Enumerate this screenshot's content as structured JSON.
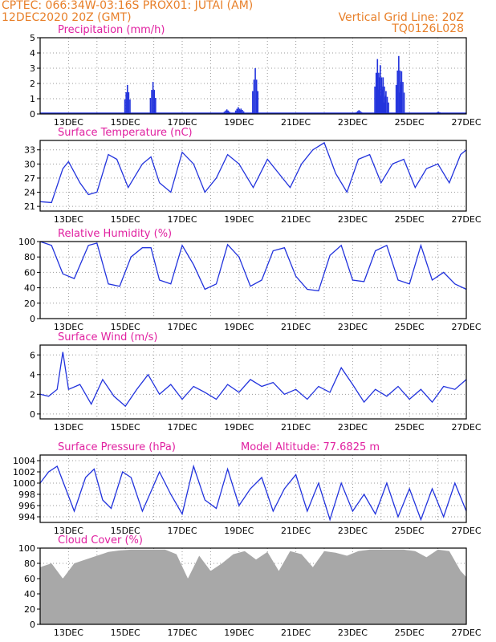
{
  "header": {
    "line1_left": "CPTEC:   066:34W-03:16S  PROX01: JUTAI (AM)",
    "line2_left": "12DEC2020 20Z (GMT)",
    "line2_right": "Vertical Grid Line: 20Z",
    "line3_right": "TQ0126L028",
    "color": "#e8802a"
  },
  "colors": {
    "title": "#e020a0",
    "series": "#2233dd",
    "cloud": "#a8a8a8",
    "grid": "#9a9a9a"
  },
  "x_axis": {
    "labels": [
      "13DEC",
      "15DEC",
      "17DEC",
      "19DEC",
      "21DEC",
      "23DEC",
      "25DEC",
      "27DEC"
    ],
    "start": "12DEC2020 20Z",
    "end": "27DEC2020 20Z",
    "vertical_grid": "20Z"
  },
  "chart_data": [
    {
      "type": "bar",
      "title": "Precipitation (mm/h)",
      "ylim": [
        0,
        5
      ],
      "yticks": [
        0,
        1,
        2,
        3,
        4,
        5
      ],
      "events": [
        [
          3.05,
          1.9
        ],
        [
          3.95,
          2.1
        ],
        [
          6.55,
          0.3
        ],
        [
          6.95,
          0.45
        ],
        [
          7.05,
          0.35
        ],
        [
          7.55,
          3.0
        ],
        [
          11.2,
          0.25
        ],
        [
          11.85,
          3.6
        ],
        [
          11.95,
          3.2
        ],
        [
          12.05,
          2.4
        ],
        [
          12.15,
          1.5
        ],
        [
          12.6,
          3.8
        ],
        [
          12.7,
          2.8
        ],
        [
          14.0,
          0.15
        ]
      ]
    },
    {
      "type": "line",
      "title": "Surface Temperature (nC)",
      "ylim": [
        20,
        35
      ],
      "yticks": [
        21,
        24,
        27,
        30,
        33
      ],
      "values": [
        [
          0,
          22
        ],
        [
          0.4,
          21.8
        ],
        [
          0.8,
          29
        ],
        [
          1.0,
          30.5
        ],
        [
          1.4,
          26
        ],
        [
          1.7,
          23.5
        ],
        [
          2.0,
          24
        ],
        [
          2.4,
          32
        ],
        [
          2.7,
          31
        ],
        [
          3.1,
          25
        ],
        [
          3.6,
          30
        ],
        [
          3.9,
          31.5
        ],
        [
          4.2,
          26
        ],
        [
          4.6,
          24
        ],
        [
          5.0,
          32.5
        ],
        [
          5.4,
          30
        ],
        [
          5.8,
          24
        ],
        [
          6.2,
          27
        ],
        [
          6.6,
          32
        ],
        [
          7.0,
          30
        ],
        [
          7.5,
          25
        ],
        [
          8.0,
          31
        ],
        [
          8.4,
          28
        ],
        [
          8.8,
          25
        ],
        [
          9.2,
          30
        ],
        [
          9.6,
          33
        ],
        [
          10.0,
          34.5
        ],
        [
          10.4,
          28
        ],
        [
          10.8,
          24
        ],
        [
          11.2,
          31
        ],
        [
          11.6,
          32
        ],
        [
          12.0,
          26
        ],
        [
          12.4,
          30
        ],
        [
          12.8,
          31
        ],
        [
          13.2,
          25
        ],
        [
          13.6,
          29
        ],
        [
          14.0,
          30
        ],
        [
          14.4,
          26
        ],
        [
          14.8,
          32
        ],
        [
          15.0,
          33
        ]
      ]
    },
    {
      "type": "line",
      "title": "Relative Humidity (%)",
      "ylim": [
        0,
        100
      ],
      "yticks": [
        0,
        20,
        40,
        60,
        80,
        100
      ],
      "values": [
        [
          0,
          100
        ],
        [
          0.4,
          95
        ],
        [
          0.8,
          58
        ],
        [
          1.2,
          52
        ],
        [
          1.7,
          95
        ],
        [
          2.0,
          98
        ],
        [
          2.4,
          45
        ],
        [
          2.8,
          42
        ],
        [
          3.2,
          80
        ],
        [
          3.6,
          92
        ],
        [
          3.9,
          92
        ],
        [
          4.2,
          50
        ],
        [
          4.6,
          45
        ],
        [
          5.0,
          95
        ],
        [
          5.4,
          70
        ],
        [
          5.8,
          38
        ],
        [
          6.2,
          45
        ],
        [
          6.6,
          96
        ],
        [
          7.0,
          80
        ],
        [
          7.4,
          42
        ],
        [
          7.8,
          50
        ],
        [
          8.2,
          88
        ],
        [
          8.6,
          92
        ],
        [
          9.0,
          55
        ],
        [
          9.4,
          38
        ],
        [
          9.8,
          36
        ],
        [
          10.2,
          82
        ],
        [
          10.6,
          95
        ],
        [
          11.0,
          50
        ],
        [
          11.4,
          48
        ],
        [
          11.8,
          88
        ],
        [
          12.2,
          95
        ],
        [
          12.6,
          50
        ],
        [
          13.0,
          45
        ],
        [
          13.4,
          95
        ],
        [
          13.8,
          50
        ],
        [
          14.2,
          60
        ],
        [
          14.6,
          45
        ],
        [
          15.0,
          38
        ]
      ]
    },
    {
      "type": "line",
      "title": "Surface Wind (m/s)",
      "ylim": [
        -0.5,
        7
      ],
      "yticks": [
        0,
        2,
        4,
        6
      ],
      "values": [
        [
          0,
          2
        ],
        [
          0.3,
          1.8
        ],
        [
          0.6,
          2.5
        ],
        [
          0.8,
          6.3
        ],
        [
          1.0,
          2.5
        ],
        [
          1.4,
          3
        ],
        [
          1.8,
          1
        ],
        [
          2.2,
          3.5
        ],
        [
          2.6,
          1.8
        ],
        [
          3.0,
          0.8
        ],
        [
          3.4,
          2.5
        ],
        [
          3.8,
          4
        ],
        [
          4.2,
          2
        ],
        [
          4.6,
          3
        ],
        [
          5.0,
          1.5
        ],
        [
          5.4,
          2.8
        ],
        [
          5.8,
          2.2
        ],
        [
          6.2,
          1.5
        ],
        [
          6.6,
          3
        ],
        [
          7.0,
          2.2
        ],
        [
          7.4,
          3.5
        ],
        [
          7.8,
          2.8
        ],
        [
          8.2,
          3.2
        ],
        [
          8.6,
          2
        ],
        [
          9.0,
          2.5
        ],
        [
          9.4,
          1.5
        ],
        [
          9.8,
          2.8
        ],
        [
          10.2,
          2.2
        ],
        [
          10.6,
          4.7
        ],
        [
          11.0,
          3
        ],
        [
          11.4,
          1.2
        ],
        [
          11.8,
          2.5
        ],
        [
          12.2,
          1.8
        ],
        [
          12.6,
          2.8
        ],
        [
          13.0,
          1.5
        ],
        [
          13.4,
          2.5
        ],
        [
          13.8,
          1.2
        ],
        [
          14.2,
          2.8
        ],
        [
          14.6,
          2.5
        ],
        [
          15.0,
          3.5
        ]
      ]
    },
    {
      "type": "line",
      "title": "Surface Pressure (hPa)",
      "annotation": "Model Altitude: 77.6825 m",
      "ylim": [
        993,
        1005
      ],
      "yticks": [
        994,
        996,
        998,
        1000,
        1002,
        1004
      ],
      "values": [
        [
          0,
          1000
        ],
        [
          0.3,
          1002
        ],
        [
          0.6,
          1003
        ],
        [
          0.9,
          999
        ],
        [
          1.2,
          995
        ],
        [
          1.6,
          1001
        ],
        [
          1.9,
          1002.5
        ],
        [
          2.2,
          997
        ],
        [
          2.5,
          995.5
        ],
        [
          2.9,
          1002
        ],
        [
          3.2,
          1001
        ],
        [
          3.6,
          995
        ],
        [
          3.9,
          998.5
        ],
        [
          4.2,
          1002
        ],
        [
          4.6,
          998
        ],
        [
          5.0,
          994.5
        ],
        [
          5.4,
          1003
        ],
        [
          5.8,
          997
        ],
        [
          6.2,
          995.5
        ],
        [
          6.6,
          1002.5
        ],
        [
          7.0,
          996
        ],
        [
          7.4,
          999
        ],
        [
          7.8,
          1001
        ],
        [
          8.2,
          995
        ],
        [
          8.6,
          999
        ],
        [
          9.0,
          1001.5
        ],
        [
          9.4,
          995
        ],
        [
          9.8,
          1000
        ],
        [
          10.2,
          993.5
        ],
        [
          10.6,
          1000
        ],
        [
          11.0,
          995
        ],
        [
          11.4,
          998
        ],
        [
          11.8,
          994.5
        ],
        [
          12.2,
          1000
        ],
        [
          12.6,
          994
        ],
        [
          13.0,
          999
        ],
        [
          13.4,
          993.5
        ],
        [
          13.8,
          999
        ],
        [
          14.2,
          994
        ],
        [
          14.6,
          1000
        ],
        [
          15.0,
          995
        ]
      ]
    },
    {
      "type": "area",
      "title": "Cloud Cover (%)",
      "ylim": [
        0,
        100
      ],
      "yticks": [
        0,
        20,
        40,
        60,
        80,
        100
      ],
      "values": [
        [
          0,
          75
        ],
        [
          0.4,
          80
        ],
        [
          0.8,
          60
        ],
        [
          1.2,
          80
        ],
        [
          1.6,
          85
        ],
        [
          2.0,
          90
        ],
        [
          2.4,
          95
        ],
        [
          2.8,
          97
        ],
        [
          3.2,
          98
        ],
        [
          3.6,
          98
        ],
        [
          4.0,
          98
        ],
        [
          4.4,
          98
        ],
        [
          4.8,
          92
        ],
        [
          5.2,
          60
        ],
        [
          5.6,
          90
        ],
        [
          6.0,
          70
        ],
        [
          6.4,
          80
        ],
        [
          6.8,
          92
        ],
        [
          7.2,
          96
        ],
        [
          7.6,
          85
        ],
        [
          8.0,
          95
        ],
        [
          8.4,
          70
        ],
        [
          8.8,
          96
        ],
        [
          9.2,
          92
        ],
        [
          9.6,
          75
        ],
        [
          10.0,
          96
        ],
        [
          10.4,
          94
        ],
        [
          10.8,
          90
        ],
        [
          11.2,
          96
        ],
        [
          11.6,
          98
        ],
        [
          12.0,
          98
        ],
        [
          12.4,
          98
        ],
        [
          12.8,
          98
        ],
        [
          13.2,
          96
        ],
        [
          13.6,
          88
        ],
        [
          14.0,
          98
        ],
        [
          14.4,
          96
        ],
        [
          14.8,
          70
        ],
        [
          15.0,
          62
        ]
      ]
    }
  ]
}
